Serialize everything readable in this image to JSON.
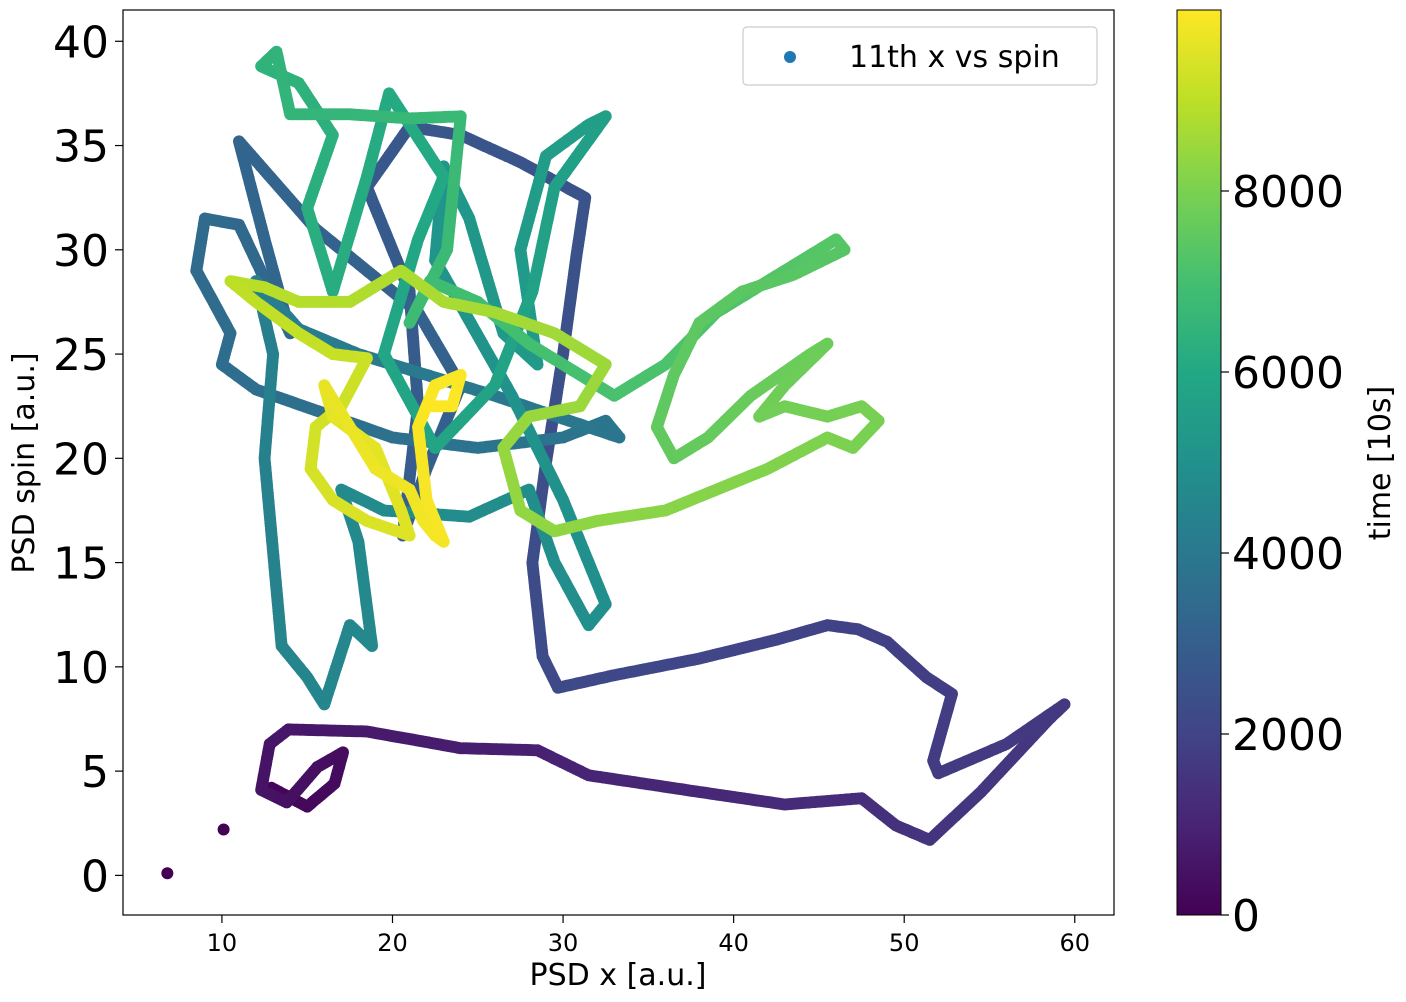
{
  "chart_data": {
    "type": "scatter",
    "title": "",
    "xlabel": "PSD x [a.u.]",
    "ylabel": "PSD spin [a.u.]",
    "xlim": [
      4.2,
      62.3
    ],
    "ylim": [
      -1.9,
      41.5
    ],
    "xticks": [
      "10",
      "20",
      "30",
      "40",
      "50",
      "60"
    ],
    "yticks": [
      "0",
      "5",
      "10",
      "15",
      "20",
      "25",
      "30",
      "35",
      "40"
    ],
    "grid": false,
    "legend": {
      "position": "top-right",
      "entries": [
        {
          "label": "11th x vs spin",
          "color": "#1f77b4"
        }
      ]
    },
    "colorbar": {
      "label": "time [10s]",
      "colormap": "viridis",
      "range": [
        0,
        10000
      ],
      "ticks": [
        "0",
        "2000",
        "4000",
        "6000",
        "8000"
      ]
    },
    "series": [
      {
        "label": "11th x vs spin",
        "color_by": "time",
        "points": [
          [
            6.8,
            0.1,
            0
          ],
          [
            10.1,
            2.2,
            40
          ],
          [
            12.9,
            4.2,
            120
          ],
          [
            15.0,
            3.3,
            200
          ],
          [
            16.6,
            4.4,
            260
          ],
          [
            17.1,
            5.9,
            320
          ],
          [
            15.6,
            5.2,
            380
          ],
          [
            13.8,
            3.5,
            440
          ],
          [
            12.3,
            4.1,
            500
          ],
          [
            12.8,
            6.3,
            560
          ],
          [
            13.9,
            7.0,
            620
          ],
          [
            18.5,
            6.9,
            700
          ],
          [
            24.0,
            6.1,
            800
          ],
          [
            28.5,
            6.0,
            900
          ],
          [
            31.5,
            4.8,
            1000
          ],
          [
            38.0,
            4.0,
            1100
          ],
          [
            43.0,
            3.4,
            1200
          ],
          [
            47.5,
            3.7,
            1300
          ],
          [
            49.5,
            2.4,
            1400
          ],
          [
            51.5,
            1.7,
            1500
          ],
          [
            54.5,
            4.0,
            1560
          ],
          [
            58.5,
            7.5,
            1620
          ],
          [
            59.4,
            8.2,
            1640
          ],
          [
            56.0,
            6.3,
            1680
          ],
          [
            52.0,
            4.9,
            1720
          ],
          [
            51.7,
            5.5,
            1740
          ],
          [
            52.8,
            8.7,
            1780
          ],
          [
            51.3,
            9.5,
            1820
          ],
          [
            49.0,
            11.2,
            1880
          ],
          [
            47.3,
            11.8,
            1920
          ],
          [
            45.5,
            12.0,
            1960
          ],
          [
            42.5,
            11.3,
            2000
          ],
          [
            38.0,
            10.4,
            2080
          ],
          [
            33.0,
            9.6,
            2160
          ],
          [
            29.7,
            9.0,
            2220
          ],
          [
            28.8,
            10.5,
            2260
          ],
          [
            28.2,
            15.0,
            2320
          ],
          [
            29.0,
            19.8,
            2380
          ],
          [
            30.0,
            25.0,
            2440
          ],
          [
            30.8,
            29.8,
            2500
          ],
          [
            31.3,
            32.5,
            2540
          ],
          [
            27.5,
            34.2,
            2600
          ],
          [
            24.0,
            35.5,
            2660
          ],
          [
            21.0,
            35.9,
            2720
          ],
          [
            18.5,
            33.0,
            2780
          ],
          [
            21.0,
            28.0,
            2840
          ],
          [
            21.5,
            22.5,
            2900
          ],
          [
            20.6,
            16.3,
            2960
          ],
          [
            22.0,
            19.5,
            3000
          ],
          [
            24.0,
            23.5,
            3040
          ],
          [
            21.5,
            27.0,
            3100
          ],
          [
            15.5,
            31.0,
            3160
          ],
          [
            11.0,
            35.2,
            3220
          ],
          [
            12.5,
            30.5,
            3280
          ],
          [
            14.0,
            26.0,
            3340
          ],
          [
            11.0,
            31.2,
            3400
          ],
          [
            9.0,
            31.5,
            3440
          ],
          [
            8.5,
            29.0,
            3480
          ],
          [
            10.5,
            26.0,
            3520
          ],
          [
            10.0,
            24.5,
            3560
          ],
          [
            12.0,
            23.3,
            3600
          ],
          [
            15.5,
            22.3,
            3660
          ],
          [
            20.0,
            21.0,
            3720
          ],
          [
            25.0,
            20.5,
            3780
          ],
          [
            30.0,
            21.0,
            3840
          ],
          [
            32.5,
            21.8,
            3880
          ],
          [
            33.3,
            21.0,
            3920
          ],
          [
            30.0,
            21.9,
            3960
          ],
          [
            26.0,
            23.0,
            4000
          ],
          [
            22.0,
            24.0,
            4060
          ],
          [
            18.0,
            25.0,
            4120
          ],
          [
            14.5,
            26.2,
            4180
          ],
          [
            12.0,
            28.5,
            4240
          ],
          [
            13.0,
            25.0,
            4300
          ],
          [
            12.5,
            20.0,
            4360
          ],
          [
            13.0,
            15.5,
            4420
          ],
          [
            13.5,
            11.0,
            4480
          ],
          [
            15.0,
            9.5,
            4520
          ],
          [
            16.0,
            8.2,
            4560
          ],
          [
            17.5,
            12.0,
            4600
          ],
          [
            18.8,
            11.0,
            4640
          ],
          [
            18.0,
            16.0,
            4680
          ],
          [
            17.0,
            18.5,
            4720
          ],
          [
            19.5,
            17.5,
            4760
          ],
          [
            24.5,
            17.2,
            4820
          ],
          [
            28.0,
            18.5,
            4860
          ],
          [
            29.5,
            15.0,
            4900
          ],
          [
            31.5,
            12.0,
            4940
          ],
          [
            32.5,
            13.0,
            4960
          ],
          [
            30.0,
            18.0,
            5000
          ],
          [
            27.0,
            23.0,
            5060
          ],
          [
            22.5,
            29.5,
            5140
          ],
          [
            23.0,
            34.0,
            5200
          ],
          [
            24.5,
            31.5,
            5260
          ],
          [
            26.5,
            26.0,
            5320
          ],
          [
            28.5,
            24.5,
            5380
          ],
          [
            27.5,
            30.0,
            5440
          ],
          [
            29.0,
            34.5,
            5500
          ],
          [
            31.5,
            36.0,
            5560
          ],
          [
            32.5,
            36.4,
            5600
          ],
          [
            29.5,
            33.0,
            5660
          ],
          [
            28.2,
            28.0,
            5720
          ],
          [
            26.0,
            23.5,
            5780
          ],
          [
            22.5,
            20.5,
            5840
          ],
          [
            19.5,
            25.0,
            5900
          ],
          [
            21.5,
            30.5,
            5960
          ],
          [
            23.0,
            33.5,
            6020
          ],
          [
            19.8,
            37.5,
            6080
          ],
          [
            18.5,
            33.5,
            6140
          ],
          [
            16.5,
            28.0,
            6200
          ],
          [
            15.0,
            32.0,
            6260
          ],
          [
            16.5,
            35.5,
            6320
          ],
          [
            14.5,
            38.0,
            6380
          ],
          [
            12.3,
            38.8,
            6420
          ],
          [
            13.2,
            39.5,
            6460
          ],
          [
            14.0,
            36.5,
            6520
          ],
          [
            17.5,
            36.5,
            6580
          ],
          [
            21.0,
            36.3,
            6640
          ],
          [
            24.0,
            36.4,
            6700
          ],
          [
            23.2,
            30.0,
            6760
          ],
          [
            21.0,
            26.5,
            6820
          ],
          [
            22.2,
            28.5,
            6860
          ],
          [
            25.0,
            27.5,
            6920
          ],
          [
            28.0,
            25.5,
            6980
          ],
          [
            31.0,
            24.0,
            7040
          ],
          [
            33.0,
            23.0,
            7080
          ],
          [
            36.0,
            24.5,
            7140
          ],
          [
            39.0,
            27.0,
            7200
          ],
          [
            42.0,
            28.5,
            7260
          ],
          [
            46.0,
            30.5,
            7320
          ],
          [
            46.5,
            30.0,
            7340
          ],
          [
            43.5,
            28.8,
            7380
          ],
          [
            40.5,
            28.0,
            7420
          ],
          [
            38.0,
            26.5,
            7460
          ],
          [
            36.5,
            24.0,
            7500
          ],
          [
            35.5,
            21.5,
            7540
          ],
          [
            36.5,
            20.0,
            7580
          ],
          [
            38.5,
            21.0,
            7620
          ],
          [
            41.0,
            23.0,
            7660
          ],
          [
            44.5,
            25.0,
            7720
          ],
          [
            45.5,
            25.5,
            7740
          ],
          [
            43.0,
            23.5,
            7780
          ],
          [
            41.5,
            22.0,
            7820
          ],
          [
            43.0,
            22.5,
            7860
          ],
          [
            45.5,
            22.0,
            7900
          ],
          [
            47.5,
            22.5,
            7940
          ],
          [
            48.5,
            21.8,
            7960
          ],
          [
            47.0,
            20.5,
            8000
          ],
          [
            45.5,
            21.0,
            8040
          ],
          [
            42.0,
            19.5,
            8100
          ],
          [
            39.0,
            18.5,
            8160
          ],
          [
            36.0,
            17.5,
            8220
          ],
          [
            32.0,
            17.0,
            8280
          ],
          [
            29.5,
            16.5,
            8320
          ],
          [
            27.5,
            17.5,
            8360
          ],
          [
            26.5,
            20.5,
            8400
          ],
          [
            28.0,
            22.0,
            8440
          ],
          [
            31.0,
            22.5,
            8480
          ],
          [
            32.5,
            24.5,
            8520
          ],
          [
            29.5,
            26.0,
            8580
          ],
          [
            26.0,
            27.0,
            8640
          ],
          [
            23.0,
            27.5,
            8700
          ],
          [
            20.5,
            29.0,
            8760
          ],
          [
            17.5,
            27.5,
            8820
          ],
          [
            14.5,
            27.5,
            8880
          ],
          [
            12.5,
            28.2,
            8940
          ],
          [
            10.5,
            28.5,
            8980
          ],
          [
            12.0,
            27.5,
            9020
          ],
          [
            14.5,
            26.0,
            9080
          ],
          [
            16.5,
            25.0,
            9140
          ],
          [
            18.5,
            24.8,
            9200
          ],
          [
            17.0,
            22.5,
            9260
          ],
          [
            15.5,
            21.5,
            9320
          ],
          [
            15.2,
            19.5,
            9360
          ],
          [
            16.5,
            18.0,
            9400
          ],
          [
            18.5,
            17.0,
            9440
          ],
          [
            21.0,
            16.3,
            9500
          ],
          [
            20.5,
            17.5,
            9540
          ],
          [
            19.0,
            20.5,
            9580
          ],
          [
            16.5,
            22.0,
            9620
          ],
          [
            16.0,
            23.5,
            9660
          ],
          [
            17.5,
            21.5,
            9700
          ],
          [
            19.0,
            19.5,
            9740
          ],
          [
            21.0,
            18.5,
            9780
          ],
          [
            21.8,
            17.0,
            9820
          ],
          [
            22.5,
            16.3,
            9860
          ],
          [
            23.0,
            16.0,
            9880
          ],
          [
            22.0,
            18.0,
            9900
          ],
          [
            21.5,
            21.5,
            9920
          ],
          [
            22.5,
            23.5,
            9940
          ],
          [
            24.0,
            24.0,
            9960
          ],
          [
            23.5,
            22.5,
            9980
          ],
          [
            22.0,
            22.5,
            10000
          ]
        ]
      }
    ]
  }
}
